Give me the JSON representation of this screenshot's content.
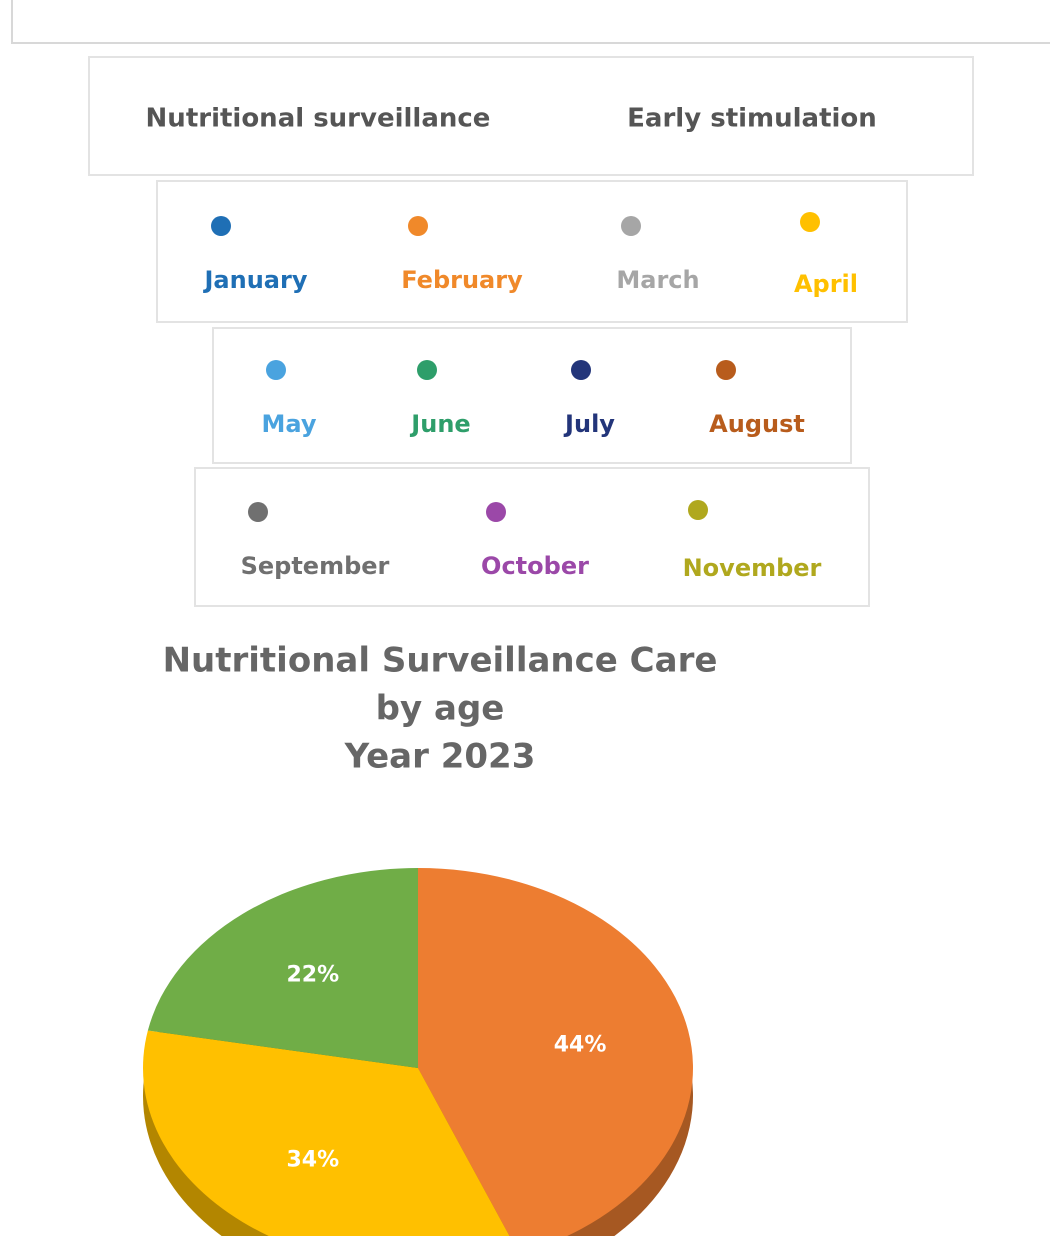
{
  "tabs": [
    "Nutritional surveillance",
    "Early stimulation"
  ],
  "legend": [
    {
      "label": "January",
      "color": "#1f6fb5"
    },
    {
      "label": "February",
      "color": "#f0892a"
    },
    {
      "label": "March",
      "color": "#a6a6a6"
    },
    {
      "label": "April",
      "color": "#ffc000"
    },
    {
      "label": "May",
      "color": "#4aa3df"
    },
    {
      "label": "June",
      "color": "#2e9e6a"
    },
    {
      "label": "July",
      "color": "#23357a"
    },
    {
      "label": "August",
      "color": "#b85c1c"
    },
    {
      "label": "September",
      "color": "#707070"
    },
    {
      "label": "October",
      "color": "#9b48a8"
    },
    {
      "label": "November",
      "color": "#b0a81e"
    }
  ],
  "chart_data": {
    "type": "pie",
    "title": [
      "Nutritional Surveillance Care",
      "by age",
      "Year 2023"
    ],
    "values": [
      44,
      34,
      22
    ],
    "value_labels": [
      "44%",
      "34%",
      "22%"
    ],
    "colors": [
      "#ed7d31",
      "#ffc000",
      "#70ad47"
    ]
  }
}
